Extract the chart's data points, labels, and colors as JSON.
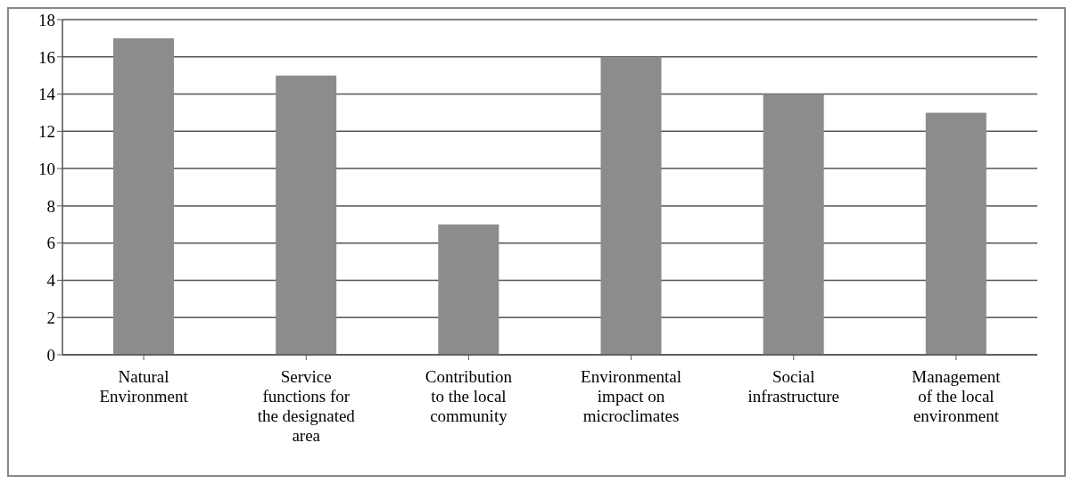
{
  "chart_data": {
    "type": "bar",
    "categories": [
      "Natural Environment",
      "Service functions for the designated area",
      "Contribution to the local community",
      "Environmental impact on microclimates",
      "Social infrastructure",
      "Management of the local environment"
    ],
    "values": [
      17,
      15,
      7,
      16,
      14,
      13
    ],
    "color": "#8c8c8c",
    "ylim": [
      0,
      18
    ],
    "yticks": [
      0,
      2,
      4,
      6,
      8,
      10,
      12,
      14,
      16,
      18
    ],
    "grid": "y"
  }
}
